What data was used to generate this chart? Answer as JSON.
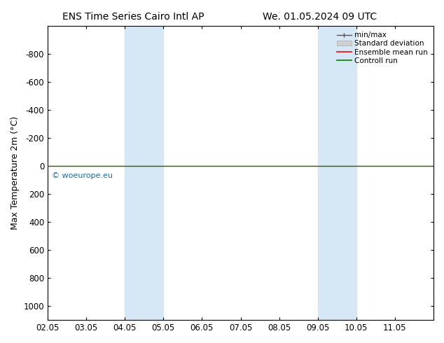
{
  "title_left": "ENS Time Series Cairo Intl AP",
  "title_right": "We. 01.05.2024 09 UTC",
  "ylabel": "Max Temperature 2m (°C)",
  "xlim": [
    0,
    10
  ],
  "ylim": [
    1100,
    -1000
  ],
  "yticks": [
    -800,
    -600,
    -400,
    -200,
    0,
    200,
    400,
    600,
    800,
    1000
  ],
  "xtick_labels": [
    "02.05",
    "03.05",
    "04.05",
    "05.05",
    "06.05",
    "07.05",
    "08.05",
    "09.05",
    "10.05",
    "11.05"
  ],
  "blue_bands": [
    [
      2.0,
      2.5
    ],
    [
      2.5,
      3.0
    ],
    [
      7.0,
      7.5
    ],
    [
      7.5,
      8.0
    ]
  ],
  "blue_color": "#d6e8f5",
  "green_line_y": 0,
  "red_line_y": 0,
  "watermark": "© woeurope.eu",
  "watermark_color": "#1a6fa8",
  "legend_entries": [
    "min/max",
    "Standard deviation",
    "Ensemble mean run",
    "Controll run"
  ],
  "legend_colors": [
    "#888888",
    "#cccccc",
    "#ff0000",
    "#008000"
  ],
  "background_color": "#ffffff",
  "plot_bg": "#ffffff"
}
